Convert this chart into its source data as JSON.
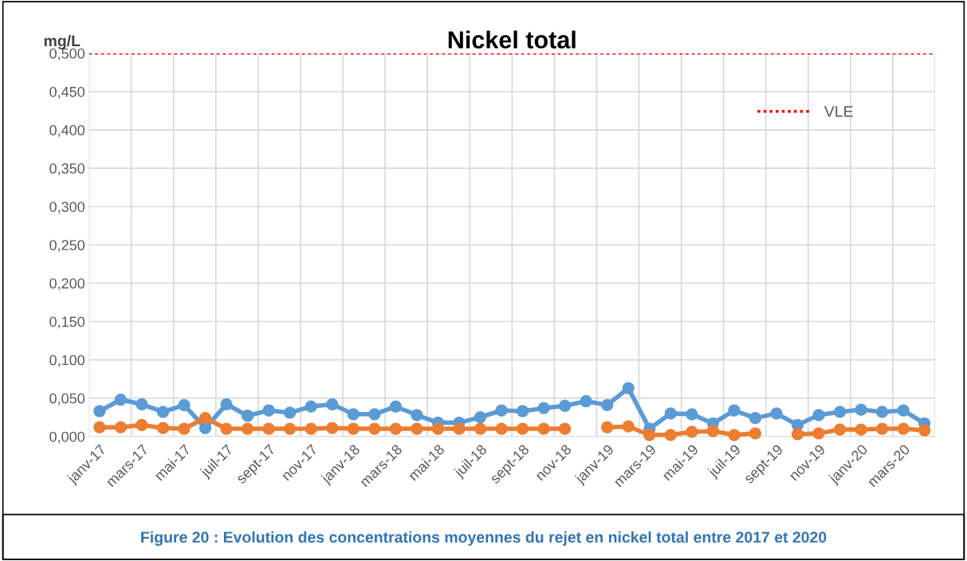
{
  "chart_data": {
    "type": "line",
    "title": "Nickel total",
    "ylabel": "mg/L",
    "categories": [
      "janv-17",
      null,
      "mars-17",
      null,
      "mai-17",
      null,
      "juil-17",
      null,
      "sept-17",
      null,
      "nov-17",
      null,
      "janv-18",
      null,
      "mars-18",
      null,
      "mai-18",
      null,
      "juil-18",
      null,
      "sept-18",
      null,
      "nov-18",
      null,
      "janv-19",
      null,
      "mars-19",
      null,
      "mai-19",
      null,
      "juil-19",
      null,
      "sept-19",
      null,
      "nov-19",
      null,
      "janv-20",
      null,
      "mars-20",
      null
    ],
    "series": [
      {
        "color": "#5b9bd5",
        "values": [
          0.033,
          0.048,
          0.042,
          0.032,
          0.041,
          0.011,
          0.042,
          0.027,
          0.034,
          0.031,
          0.039,
          0.042,
          0.029,
          0.029,
          0.039,
          0.028,
          0.018,
          0.018,
          0.025,
          0.034,
          0.033,
          0.037,
          0.04,
          0.046,
          0.041,
          0.063,
          0.01,
          0.03,
          0.029,
          0.017,
          0.034,
          0.024,
          0.03,
          0.015,
          0.028,
          0.032,
          0.035,
          0.032,
          0.034,
          0.017
        ]
      },
      {
        "color": "#ed7d31",
        "values": [
          0.012,
          0.012,
          0.015,
          0.011,
          0.01,
          0.024,
          0.01,
          0.01,
          0.01,
          0.01,
          0.01,
          0.011,
          0.01,
          0.01,
          0.01,
          0.01,
          0.01,
          0.01,
          0.01,
          0.01,
          0.01,
          0.01,
          0.01,
          null,
          0.012,
          0.013,
          0.002,
          0.002,
          0.006,
          0.007,
          0.002,
          0.004,
          null,
          0.003,
          0.004,
          0.009,
          0.009,
          0.01,
          0.01,
          0.008
        ]
      }
    ],
    "ref_lines": [
      {
        "axis": "y",
        "value": 0.5,
        "label": "VLE",
        "color": "#ff0000",
        "line_style": "dotted"
      }
    ],
    "ylim": [
      0,
      0.5
    ],
    "yticks": [
      {
        "value": 0,
        "label": "0,000"
      },
      {
        "value": 0.05,
        "label": "0,050"
      },
      {
        "value": 0.1,
        "label": "0,100"
      },
      {
        "value": 0.15,
        "label": "0,150"
      },
      {
        "value": 0.2,
        "label": "0,200"
      },
      {
        "value": 0.25,
        "label": "0,250"
      },
      {
        "value": 0.3,
        "label": "0,300"
      },
      {
        "value": 0.35,
        "label": "0,350"
      },
      {
        "value": 0.4,
        "label": "0,400"
      },
      {
        "value": 0.45,
        "label": "0,450"
      },
      {
        "value": 0.5,
        "label": "0,500"
      }
    ],
    "grid": true,
    "legend": "top right",
    "marker": "circle",
    "line_style": "solid",
    "annotations": [
      "Figure 20 : Evolution des concentrations moyennes du rejet en nickel total entre 2017 et 2020"
    ]
  }
}
